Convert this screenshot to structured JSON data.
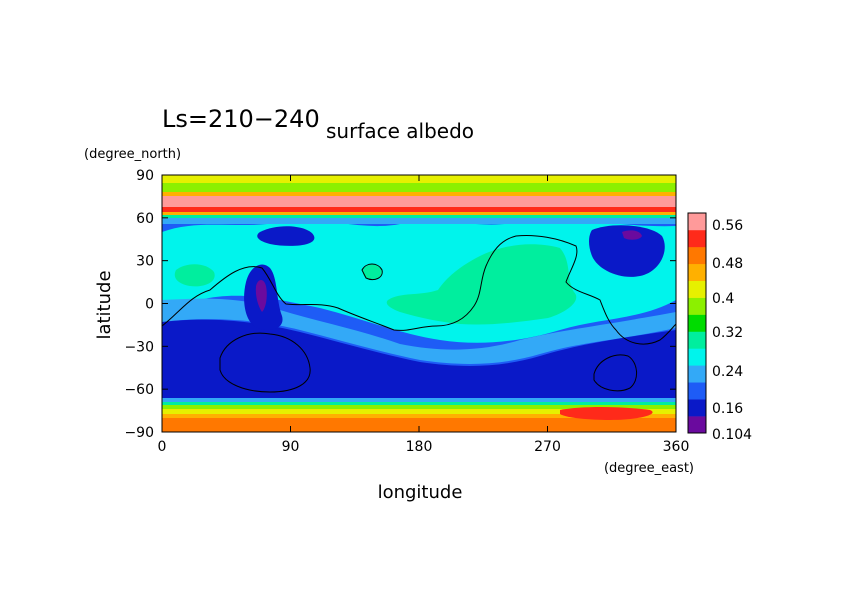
{
  "chart_data": {
    "type": "heatmap",
    "title_prefix": "Ls=210−240",
    "title": "surface albedo",
    "xlabel": "longitude",
    "ylabel": "latitude",
    "x_unit": "(degree_east)",
    "y_unit": "(degree_north)",
    "xlim": [
      0,
      360
    ],
    "ylim": [
      -90,
      90
    ],
    "x_ticks": [
      "0",
      "90",
      "180",
      "270",
      "360"
    ],
    "y_ticks": [
      "90",
      "60",
      "30",
      "0",
      "−30",
      "−60",
      "−90"
    ],
    "colorbar": {
      "levels": [
        0.104,
        0.12,
        0.16,
        0.2,
        0.24,
        0.28,
        0.32,
        0.36,
        0.4,
        0.44,
        0.48,
        0.52,
        0.56,
        0.6
      ],
      "labels": [
        "0.56",
        "0.48",
        "0.4",
        "0.32",
        "0.24",
        "0.16",
        "0.104"
      ],
      "colors": [
        "#6a0a9e",
        "#0a19c8",
        "#1e5cf6",
        "#33a9f7",
        "#00f4ec",
        "#00ee9e",
        "#00dc00",
        "#8cf000",
        "#e6f000",
        "#ffb000",
        "#ff7800",
        "#ff2a1a",
        "#ff9a9a"
      ]
    },
    "zonal_bands": [
      {
        "lat_range": [
          80,
          90
        ],
        "level": 0.4
      },
      {
        "lat_range": [
          76,
          80
        ],
        "level": 0.44
      },
      {
        "lat_range": [
          72,
          76
        ],
        "level": 0.56
      },
      {
        "lat_range": [
          66,
          72
        ],
        "level": 0.52
      },
      {
        "lat_range": [
          62,
          66
        ],
        "level": 0.28
      },
      {
        "lat_range": [
          -66,
          -62
        ],
        "level": 0.24
      },
      {
        "lat_range": [
          -70,
          -66
        ],
        "level": 0.32
      },
      {
        "lat_range": [
          -74,
          -70
        ],
        "level": 0.4
      },
      {
        "lat_range": [
          -78,
          -74
        ],
        "level": 0.44
      },
      {
        "lat_range": [
          -90,
          -78
        ],
        "level": 0.52
      }
    ],
    "features": [
      {
        "feature": "dark low-albedo region",
        "lon": 70,
        "lat": 5,
        "level": 0.104
      },
      {
        "feature": "dark low-albedo region",
        "lon": 330,
        "lat": 50,
        "level": 0.104
      },
      {
        "feature": "bright high-albedo region",
        "lon": 240,
        "lat": 15,
        "level": 0.28
      },
      {
        "feature": "bright high-albedo region",
        "lon": 145,
        "lat": 22,
        "level": 0.28
      }
    ]
  }
}
